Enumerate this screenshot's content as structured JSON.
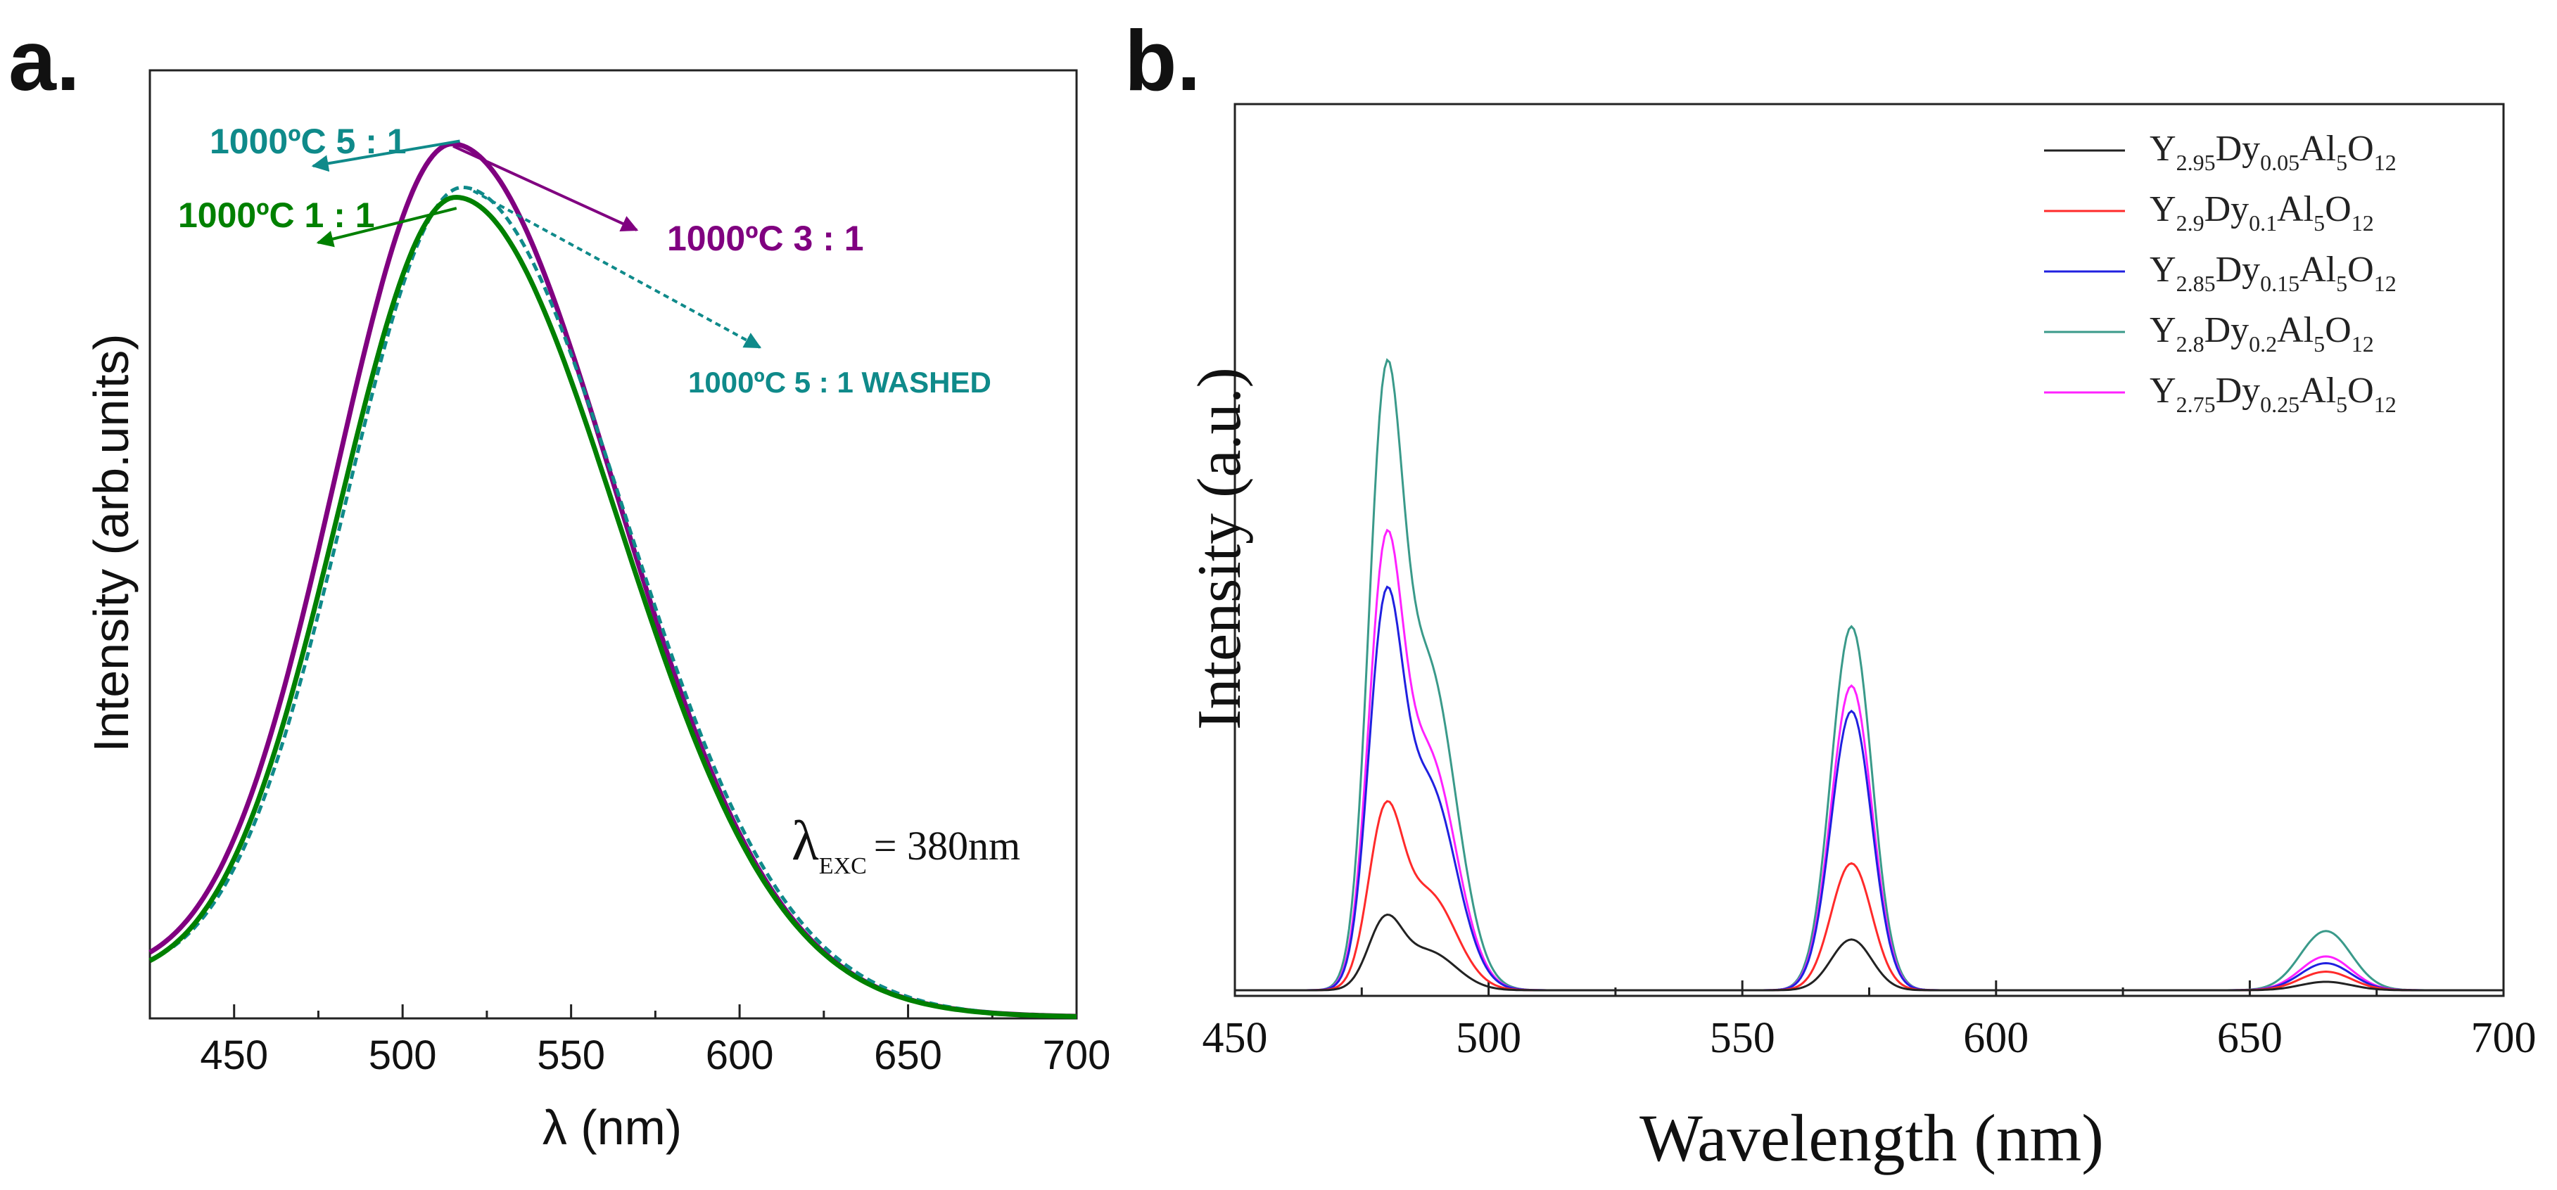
{
  "panel_a_label": "a.",
  "panel_b_label": "b.",
  "chart_data": [
    {
      "type": "line",
      "panel": "a",
      "xlabel_symbol": "λ",
      "xlabel_unit": "(nm)",
      "ylabel": "Intensity (arb.units)",
      "xlim": [
        425,
        700
      ],
      "ylim": [
        0,
        1.1
      ],
      "x_ticks": [
        450,
        500,
        550,
        600,
        650,
        700
      ],
      "excitation_symbol": "λ",
      "excitation_sub": "EXC",
      "excitation_value": "= 380nm",
      "colors": {
        "purple": "#800080",
        "green": "#008000",
        "teal": "#0f8a8a"
      },
      "series": [
        {
          "name": "1000ºC 3 : 1",
          "color": "#800080",
          "style": "solid",
          "peak": 515,
          "amplitude": 1.0,
          "offset": 0.04
        },
        {
          "name": "1000ºC 1 : 1",
          "color": "#008000",
          "style": "solid",
          "peak": 516,
          "amplitude": 0.94,
          "offset": 0.035
        },
        {
          "name": "1000ºC 5 : 1 WASHED",
          "color": "#0f8a8a",
          "style": "dotted",
          "peak": 518,
          "amplitude": 0.95,
          "offset": 0.04
        }
      ],
      "annotations": [
        {
          "text": "1000ºC  5 : 1",
          "color": "#0f8a8a"
        },
        {
          "text": "1000ºC 1 : 1",
          "color": "#008000"
        },
        {
          "text": "1000ºC 3 : 1",
          "color": "#800080"
        },
        {
          "text": "1000ºC 5 : 1 WASHED",
          "color": "#0f8a8a"
        }
      ]
    },
    {
      "type": "line",
      "panel": "b",
      "xlabel": "Wavelength (nm)",
      "ylabel": "Intensity (a.u.)",
      "xlim": [
        450,
        700
      ],
      "x_ticks": [
        450,
        500,
        550,
        600,
        650,
        700
      ],
      "baseline": 0.03,
      "series": [
        {
          "name": "Y2.95Dy0.05Al5O12",
          "label_parts": [
            "Y",
            "2.95",
            "Dy",
            "0.05",
            "Al",
            "5",
            "O",
            "12"
          ],
          "color": "#222222",
          "peaks": [
            0.12,
            0.06,
            0.01
          ]
        },
        {
          "name": "Y2.9Dy0.1Al5O12",
          "label_parts": [
            "Y",
            "2.9",
            "Dy",
            "0.1",
            "Al",
            "5",
            "O",
            "12"
          ],
          "color": "#ff2a2a",
          "peaks": [
            0.3,
            0.15,
            0.022
          ]
        },
        {
          "name": "Y2.85Dy0.15Al5O12",
          "label_parts": [
            "Y",
            "2.85",
            "Dy",
            "0.15",
            "Al",
            "5",
            "O",
            "12"
          ],
          "color": "#2020e0",
          "peaks": [
            0.64,
            0.33,
            0.032
          ]
        },
        {
          "name": "Y2.8Dy0.2Al5O12",
          "label_parts": [
            "Y",
            "2.8",
            "Dy",
            "0.2",
            "Al",
            "5",
            "O",
            "12"
          ],
          "color": "#3a9a8a",
          "peaks": [
            1.0,
            0.43,
            0.07
          ]
        },
        {
          "name": "Y2.75Dy0.25Al5O12",
          "label_parts": [
            "Y",
            "2.75",
            "Dy",
            "0.25",
            "Al",
            "5",
            "O",
            "12"
          ],
          "color": "#ff22ff",
          "peaks": [
            0.73,
            0.36,
            0.04
          ]
        }
      ]
    }
  ]
}
